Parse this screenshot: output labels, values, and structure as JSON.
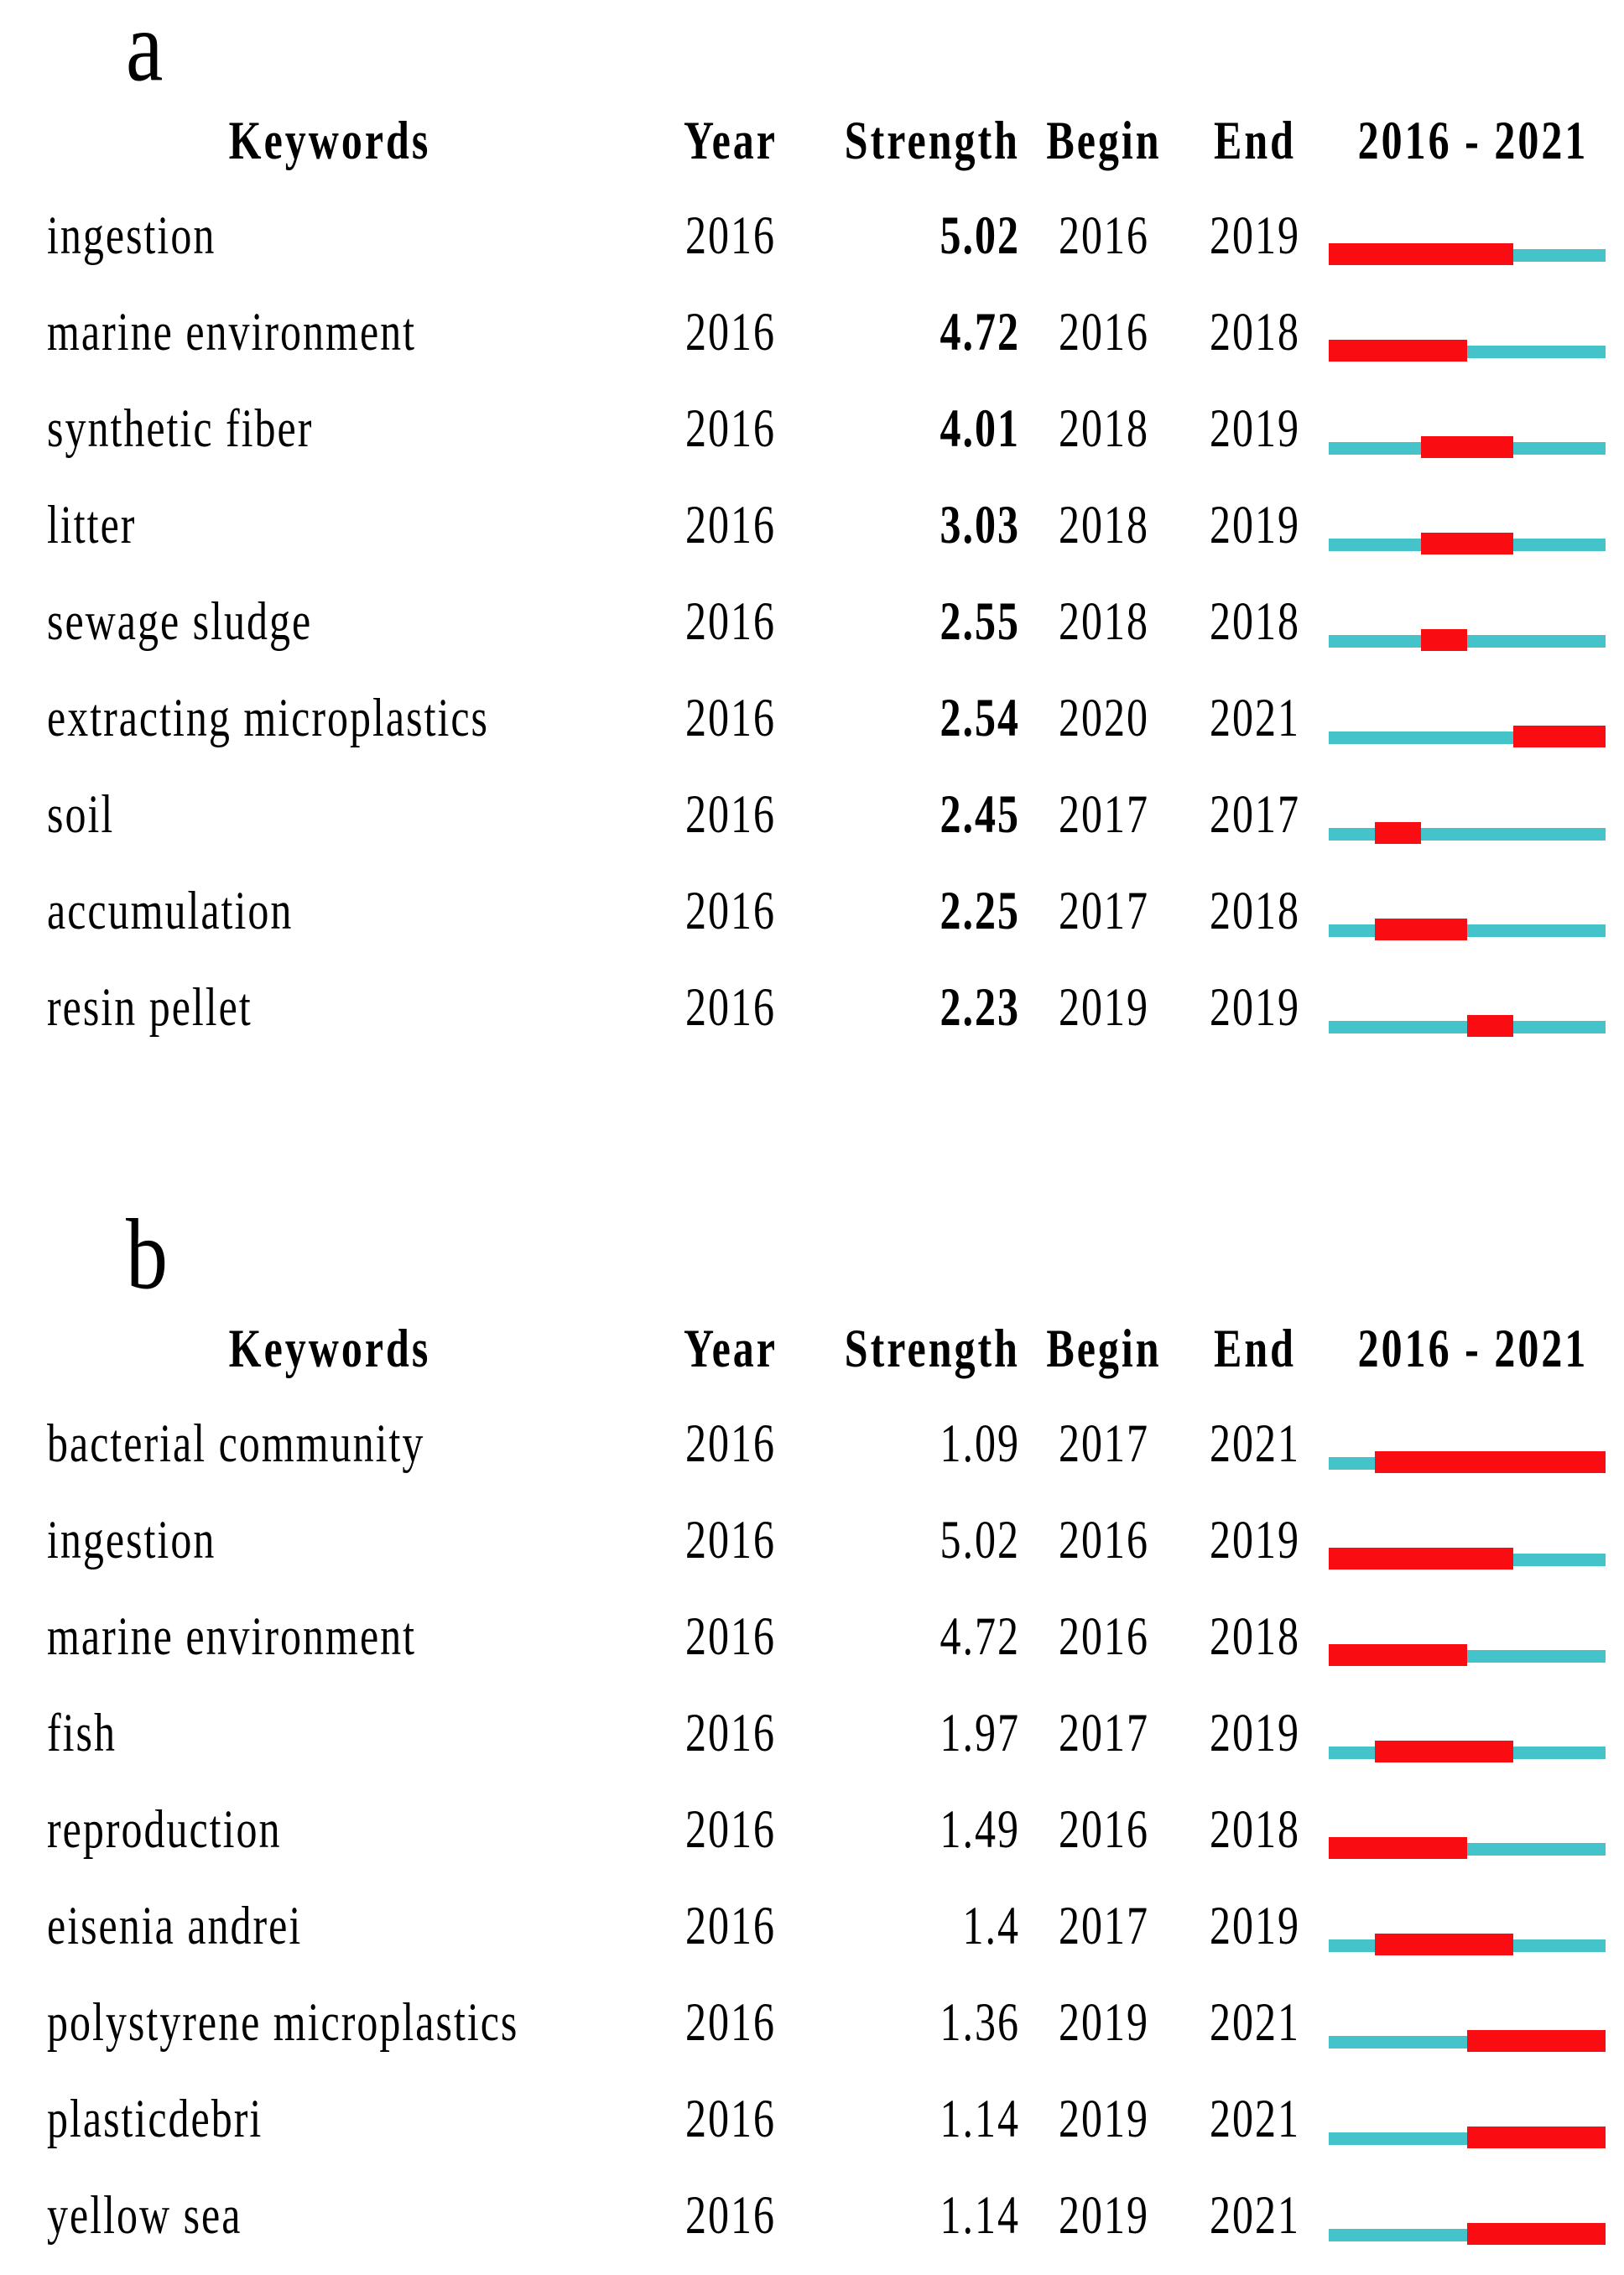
{
  "colors": {
    "burst_bar": "#F90C12",
    "timeline_bar": "#45C3CB",
    "text": "#000000",
    "background": "#FFFFFF"
  },
  "chart_data": [
    {
      "type": "table",
      "panel_label": "a",
      "columns": [
        "Keywords",
        "Year",
        "Strength",
        "Begin",
        "End",
        "2016 - 2021"
      ],
      "timeline_range": [
        2016,
        2021
      ],
      "strength_bold": true,
      "legend": {
        "burst_segment": "burst period (Begin-End), red",
        "base_segment": "full period 2016-2021, turquoise"
      },
      "rows": [
        {
          "keyword": "ingestion",
          "year": "2016",
          "strength": "5.02",
          "begin": 2016,
          "end": 2019
        },
        {
          "keyword": "marine environment",
          "year": "2016",
          "strength": "4.72",
          "begin": 2016,
          "end": 2018
        },
        {
          "keyword": "synthetic fiber",
          "year": "2016",
          "strength": "4.01",
          "begin": 2018,
          "end": 2019
        },
        {
          "keyword": "litter",
          "year": "2016",
          "strength": "3.03",
          "begin": 2018,
          "end": 2019
        },
        {
          "keyword": "sewage sludge",
          "year": "2016",
          "strength": "2.55",
          "begin": 2018,
          "end": 2018
        },
        {
          "keyword": "extracting microplastics",
          "year": "2016",
          "strength": "2.54",
          "begin": 2020,
          "end": 2021
        },
        {
          "keyword": "soil",
          "year": "2016",
          "strength": "2.45",
          "begin": 2017,
          "end": 2017
        },
        {
          "keyword": "accumulation",
          "year": "2016",
          "strength": "2.25",
          "begin": 2017,
          "end": 2018
        },
        {
          "keyword": "resin pellet",
          "year": "2016",
          "strength": "2.23",
          "begin": 2019,
          "end": 2019
        }
      ]
    },
    {
      "type": "table",
      "panel_label": "b",
      "columns": [
        "Keywords",
        "Year",
        "Strength",
        "Begin",
        "End",
        "2016 - 2021"
      ],
      "timeline_range": [
        2016,
        2021
      ],
      "strength_bold": false,
      "legend": {
        "burst_segment": "burst period (Begin-End), red",
        "base_segment": "full period 2016-2021, turquoise"
      },
      "rows": [
        {
          "keyword": "bacterial community",
          "year": "2016",
          "strength": "1.09",
          "begin": 2017,
          "end": 2021
        },
        {
          "keyword": "ingestion",
          "year": "2016",
          "strength": "5.02",
          "begin": 2016,
          "end": 2019
        },
        {
          "keyword": "marine environment",
          "year": "2016",
          "strength": "4.72",
          "begin": 2016,
          "end": 2018
        },
        {
          "keyword": "fish",
          "year": "2016",
          "strength": "1.97",
          "begin": 2017,
          "end": 2019
        },
        {
          "keyword": "reproduction",
          "year": "2016",
          "strength": "1.49",
          "begin": 2016,
          "end": 2018
        },
        {
          "keyword": "eisenia andrei",
          "year": "2016",
          "strength": "1.4",
          "begin": 2017,
          "end": 2019
        },
        {
          "keyword": "polystyrene microplastics",
          "year": "2016",
          "strength": "1.36",
          "begin": 2019,
          "end": 2021
        },
        {
          "keyword": "plasticdebri",
          "year": "2016",
          "strength": "1.14",
          "begin": 2019,
          "end": 2021
        },
        {
          "keyword": "yellow sea",
          "year": "2016",
          "strength": "1.14",
          "begin": 2019,
          "end": 2021
        }
      ]
    }
  ]
}
